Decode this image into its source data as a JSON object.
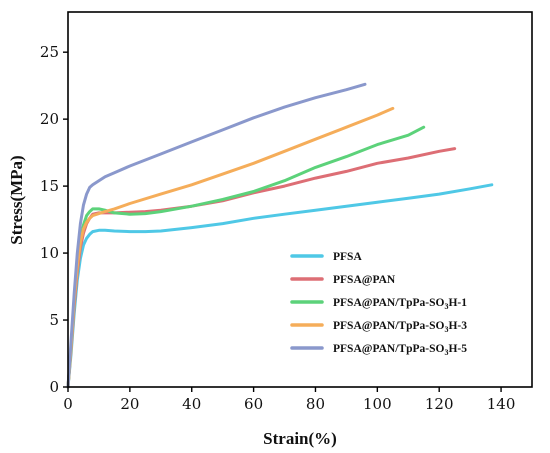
{
  "chart_data": {
    "type": "line",
    "title": "",
    "xlabel": "Strain(%)",
    "ylabel": "Stress(MPa)",
    "xlim": [
      0,
      150
    ],
    "ylim": [
      0,
      28
    ],
    "xticks": [
      0,
      20,
      40,
      60,
      80,
      100,
      120,
      140
    ],
    "yticks": [
      0,
      5,
      10,
      15,
      20,
      25
    ],
    "grid": false,
    "legend_position": "center-right",
    "series": [
      {
        "name": "PFSA",
        "color": "#4fc8e6",
        "x": [
          0,
          1,
          2,
          3,
          4,
          5,
          6,
          7,
          8,
          10,
          12,
          15,
          20,
          25,
          30,
          40,
          50,
          60,
          70,
          80,
          90,
          100,
          110,
          120,
          130,
          137
        ],
        "y": [
          0,
          2.5,
          5.5,
          8.0,
          9.6,
          10.6,
          11.1,
          11.4,
          11.6,
          11.7,
          11.7,
          11.65,
          11.6,
          11.6,
          11.65,
          11.9,
          12.2,
          12.6,
          12.9,
          13.2,
          13.5,
          13.8,
          14.1,
          14.4,
          14.8,
          15.1
        ]
      },
      {
        "name": "PFSA@PAN",
        "color": "#dd6e75",
        "x": [
          0,
          1,
          2,
          3,
          4,
          5,
          6,
          7,
          8,
          10,
          12,
          15,
          20,
          25,
          30,
          40,
          50,
          60,
          70,
          80,
          90,
          100,
          110,
          120,
          125
        ],
        "y": [
          0,
          2.8,
          6.0,
          8.6,
          10.4,
          11.5,
          12.2,
          12.6,
          12.9,
          13.0,
          13.0,
          13.0,
          13.05,
          13.1,
          13.2,
          13.5,
          13.9,
          14.5,
          15.0,
          15.6,
          16.1,
          16.7,
          17.1,
          17.6,
          17.8
        ]
      },
      {
        "name": "PFSA@PAN/TpPa-SO3H-1",
        "color": "#5cd27a",
        "x": [
          0,
          1,
          2,
          3,
          4,
          5,
          6,
          7,
          8,
          10,
          12,
          15,
          20,
          25,
          30,
          40,
          50,
          60,
          70,
          80,
          90,
          100,
          110,
          115
        ],
        "y": [
          0,
          3.0,
          6.5,
          9.2,
          11.0,
          12.1,
          12.8,
          13.1,
          13.3,
          13.3,
          13.2,
          13.0,
          12.9,
          12.95,
          13.1,
          13.5,
          14.0,
          14.6,
          15.4,
          16.4,
          17.2,
          18.1,
          18.8,
          19.4
        ]
      },
      {
        "name": "PFSA@PAN/TpPa-SO3H-3",
        "color": "#f5ad5a",
        "x": [
          0,
          1,
          2,
          3,
          4,
          5,
          6,
          7,
          8,
          10,
          12,
          15,
          20,
          30,
          40,
          50,
          60,
          70,
          80,
          90,
          100,
          105
        ],
        "y": [
          0,
          3.0,
          6.5,
          9.0,
          10.8,
          11.8,
          12.3,
          12.6,
          12.8,
          12.95,
          13.1,
          13.3,
          13.7,
          14.4,
          15.1,
          15.9,
          16.7,
          17.6,
          18.5,
          19.4,
          20.3,
          20.8
        ]
      },
      {
        "name": "PFSA@PAN/TpPa-SO3H-5",
        "color": "#8a98cc",
        "x": [
          0,
          1,
          2,
          3,
          4,
          5,
          6,
          7,
          8,
          10,
          12,
          15,
          20,
          30,
          40,
          50,
          60,
          70,
          80,
          90,
          96
        ],
        "y": [
          0,
          3.5,
          7.0,
          10.0,
          12.2,
          13.6,
          14.4,
          14.9,
          15.1,
          15.4,
          15.7,
          16.0,
          16.5,
          17.4,
          18.3,
          19.2,
          20.1,
          20.9,
          21.6,
          22.2,
          22.6
        ]
      }
    ]
  },
  "legend": [
    {
      "name": "PFSA",
      "main": "PFSA",
      "sub": "",
      "tail": ""
    },
    {
      "name": "PFSA@PAN",
      "main": "PFSA@PAN",
      "sub": "",
      "tail": ""
    },
    {
      "name": "PFSA@PAN/TpPa-SO3H-1",
      "main": "PFSA@PAN/TpPa-SO",
      "sub": "3",
      "tail": "H-1"
    },
    {
      "name": "PFSA@PAN/TpPa-SO3H-3",
      "main": "PFSA@PAN/TpPa-SO",
      "sub": "3",
      "tail": "H-3"
    },
    {
      "name": "PFSA@PAN/TpPa-SO3H-5",
      "main": "PFSA@PAN/TpPa-SO",
      "sub": "3",
      "tail": "H-5"
    }
  ]
}
